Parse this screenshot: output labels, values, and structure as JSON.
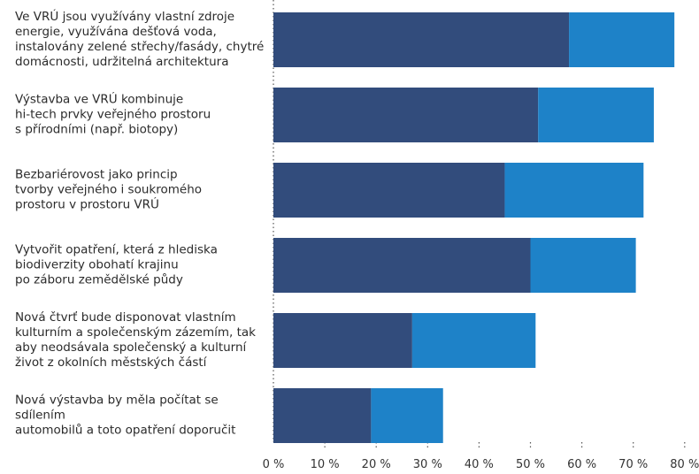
{
  "chart_data": {
    "type": "bar",
    "orientation": "horizontal",
    "stacked": true,
    "categories": [
      "Ve VRÚ jsou využívány vlastní zdroje\nenergie, využívána dešťová voda,\ninstalovány zelené střechy/fasády, chytré\ndomácnosti, udržitelná architektura",
      "Výstavba ve VRÚ kombinuje\nhi-tech prvky veřejného prostoru\ns přírodními (např. biotopy)",
      "Bezbariérovost jako princip\ntvorby veřejného i soukromého\nprostoru v prostoru VRÚ",
      "Vytvořit opatření, která z hlediska\nbiodiverzity obohatí krajinu\npo záboru zemědělské půdy",
      "Nová čtvrť bude disponovat vlastním\nkulturním a společenským zázemím, tak\naby neodsávala společenský a kulturní\nživot z okolních městských částí",
      "Nová výstavba by měla počítat se sdílením\nautomobilů a toto opatření doporučit"
    ],
    "series": [
      {
        "values": [
          57.5,
          51.5,
          45,
          50,
          27,
          19
        ],
        "color": "#324c7c"
      },
      {
        "values": [
          20.5,
          22.5,
          27,
          20.5,
          24,
          14
        ],
        "color": "#1e82c8"
      }
    ],
    "xlim": [
      0,
      80
    ],
    "xticks": [
      0,
      10,
      20,
      30,
      40,
      50,
      60,
      70,
      80
    ],
    "xtick_labels": [
      "0 %",
      "10 %",
      "20 %",
      "30 %",
      "40 %",
      "50 %",
      "60 %",
      "70 %",
      "80 %"
    ],
    "grid": "dotted vertical at tick positions",
    "legend": "none"
  }
}
